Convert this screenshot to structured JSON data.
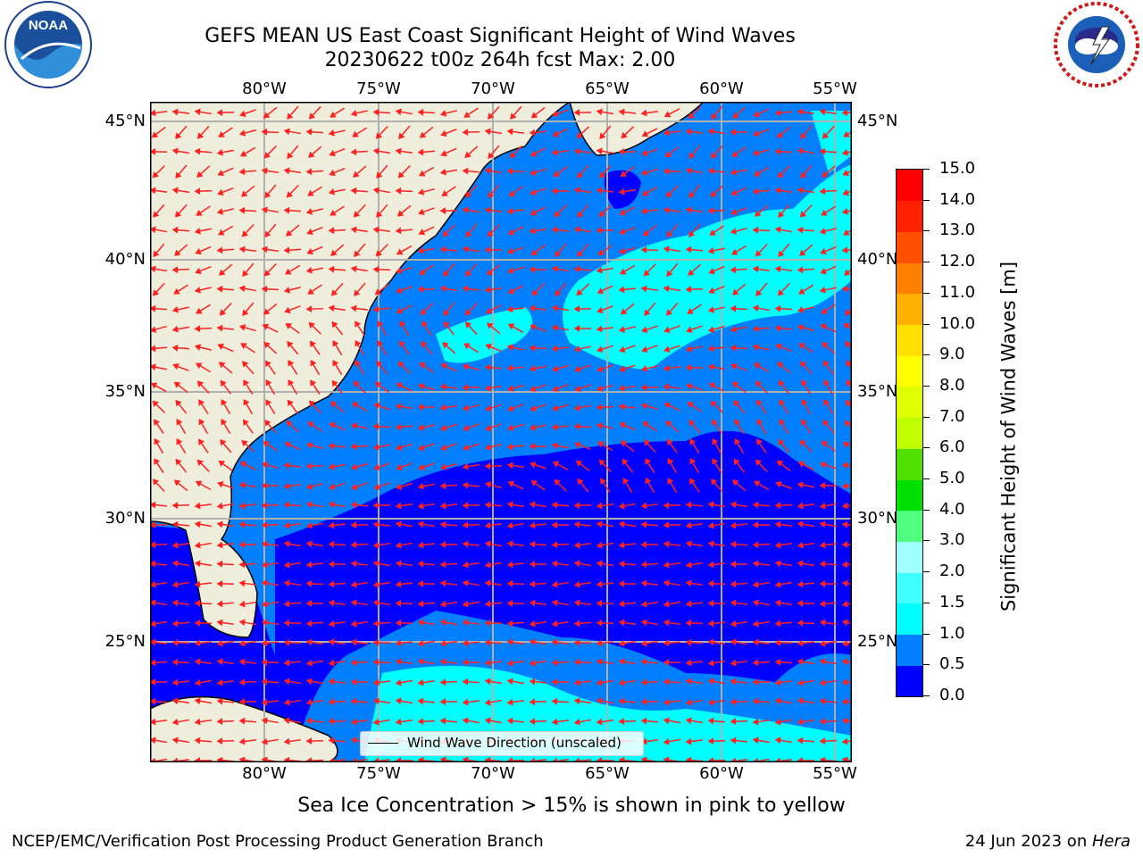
{
  "header": {
    "title_line1": "GEFS MEAN US East Coast Significant Height of Wind Waves",
    "title_line2": "20230622 t00z 264h fcst   Max: 2.00"
  },
  "logos": {
    "left": {
      "text": "NOAA",
      "icon": "noaa-logo"
    },
    "right": {
      "icon": "nws-logo"
    }
  },
  "map": {
    "lon_labels": [
      "80°W",
      "75°W",
      "70°W",
      "65°W",
      "60°W",
      "55°W"
    ],
    "lat_labels": [
      "45°N",
      "40°N",
      "35°N",
      "30°N",
      "25°N"
    ],
    "legend_label": "Wind Wave Direction (unscaled)",
    "colors": {
      "ocean_low": "#0000ff",
      "ocean_mid": "#0080ff",
      "ocean_high": "#00ffff",
      "land": "#efeedc",
      "arrow": "#ff0000",
      "grid": "#b0b0b0"
    }
  },
  "colorbar": {
    "label": "Significant Height of Wind Waves [m]",
    "ticks": [
      "0.0",
      "0.5",
      "1.0",
      "1.5",
      "2.0",
      "3.0",
      "4.0",
      "5.0",
      "6.0",
      "7.0",
      "8.0",
      "9.0",
      "10.0",
      "11.0",
      "12.0",
      "13.0",
      "14.0",
      "15.0"
    ],
    "colors": [
      "#0000ff",
      "#0080ff",
      "#00ffff",
      "#40ffff",
      "#a0ffff",
      "#50ff80",
      "#00e000",
      "#50e000",
      "#c0ff00",
      "#e0ff00",
      "#ffff00",
      "#ffe000",
      "#ffb000",
      "#ff8000",
      "#ff5000",
      "#ff2000",
      "#ff0000"
    ]
  },
  "note": "Sea Ice Concentration > 15% is shown in pink to yellow",
  "footer": {
    "left": "NCEP/EMC/Verification Post Processing Product Generation Branch",
    "date": "24 Jun 2023 on ",
    "host": "Hera"
  }
}
